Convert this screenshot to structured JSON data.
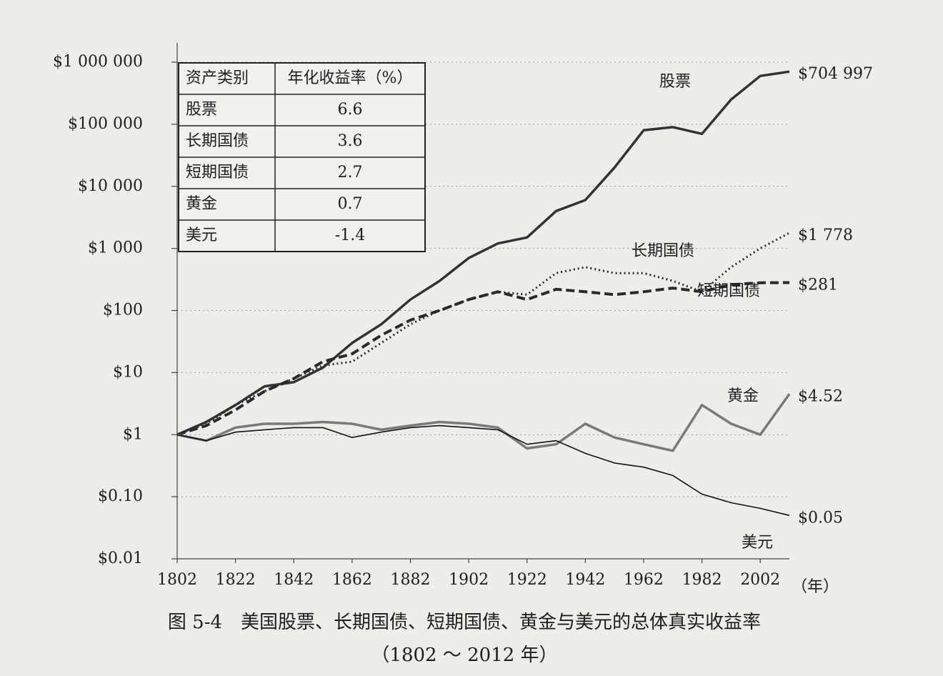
{
  "chart_data": {
    "type": "line",
    "title": "图 5-4　美国股票、长期国债、短期国债、黄金与美元的总体真实收益率",
    "subtitle": "（1802 ～ 2012 年）",
    "x_label": "（年）",
    "log_y": true,
    "grid": true,
    "xlim": [
      1802,
      2012
    ],
    "xticks": [
      1802,
      1822,
      1842,
      1862,
      1882,
      1902,
      1922,
      1942,
      1962,
      1982,
      2002
    ],
    "ylim": [
      0.01,
      1000000
    ],
    "yticks": [
      {
        "value": 0.01,
        "label": "$0.01"
      },
      {
        "value": 0.1,
        "label": "$0.10"
      },
      {
        "value": 1,
        "label": "$1"
      },
      {
        "value": 10,
        "label": "$10"
      },
      {
        "value": 100,
        "label": "$100"
      },
      {
        "value": 1000,
        "label": "$1 000"
      },
      {
        "value": 10000,
        "label": "$10 000"
      },
      {
        "value": 100000,
        "label": "$100 000"
      },
      {
        "value": 1000000,
        "label": "$1 000 000"
      }
    ],
    "x": [
      1802,
      1812,
      1822,
      1832,
      1842,
      1852,
      1862,
      1872,
      1882,
      1892,
      1902,
      1912,
      1922,
      1932,
      1942,
      1952,
      1962,
      1972,
      1982,
      1992,
      2002,
      2012
    ],
    "series": [
      {
        "name": "股票",
        "color": "#333333",
        "dash": "solid",
        "values": [
          1,
          1.6,
          3,
          6,
          7,
          12,
          30,
          60,
          150,
          300,
          700,
          1200,
          1500,
          4000,
          6000,
          20000,
          80000,
          90000,
          70000,
          250000,
          600000,
          704997
        ],
        "value_labels": [
          null,
          null,
          null,
          null,
          null,
          null,
          null,
          null,
          null,
          null,
          null,
          null,
          null,
          null,
          null,
          null,
          null,
          null,
          null,
          null,
          null,
          "$704 997"
        ]
      },
      {
        "name": "长期国债",
        "color": "#2a2a2a",
        "dash": "dotted",
        "values": [
          1,
          1.5,
          3,
          5,
          8,
          13,
          15,
          30,
          60,
          100,
          150,
          200,
          180,
          400,
          500,
          400,
          400,
          300,
          200,
          500,
          1000,
          1778
        ],
        "value_labels": [
          null,
          null,
          null,
          null,
          null,
          null,
          null,
          null,
          null,
          null,
          null,
          null,
          null,
          null,
          null,
          null,
          null,
          null,
          null,
          null,
          null,
          "$1 778"
        ]
      },
      {
        "name": "短期国债",
        "color": "#2a2a2a",
        "dash": "dashed",
        "values": [
          1,
          1.4,
          2.5,
          5,
          8,
          15,
          20,
          40,
          70,
          100,
          150,
          200,
          150,
          220,
          200,
          180,
          200,
          230,
          200,
          260,
          280,
          281
        ],
        "value_labels": [
          null,
          null,
          null,
          null,
          null,
          null,
          null,
          null,
          null,
          null,
          null,
          null,
          null,
          null,
          null,
          null,
          null,
          null,
          null,
          null,
          null,
          "$281"
        ]
      },
      {
        "name": "黄金",
        "color": "#7a7a7a",
        "dash": "solid",
        "values": [
          1,
          0.8,
          1.3,
          1.5,
          1.5,
          1.6,
          1.5,
          1.2,
          1.4,
          1.6,
          1.5,
          1.3,
          0.6,
          0.7,
          1.5,
          0.9,
          0.7,
          0.55,
          3,
          1.5,
          1.0,
          4.52
        ],
        "value_labels": [
          null,
          null,
          null,
          null,
          null,
          null,
          null,
          null,
          null,
          null,
          null,
          null,
          null,
          null,
          null,
          null,
          null,
          null,
          null,
          null,
          null,
          "$4.52"
        ]
      },
      {
        "name": "美元",
        "color": "#111111",
        "dash": "thin",
        "values": [
          1,
          0.8,
          1.1,
          1.2,
          1.3,
          1.3,
          0.9,
          1.1,
          1.3,
          1.4,
          1.3,
          1.2,
          0.7,
          0.8,
          0.5,
          0.35,
          0.3,
          0.22,
          0.11,
          0.08,
          0.065,
          0.05
        ],
        "value_labels": [
          null,
          null,
          null,
          null,
          null,
          null,
          null,
          null,
          null,
          null,
          null,
          null,
          null,
          null,
          null,
          null,
          null,
          null,
          null,
          null,
          null,
          "$0.05"
        ]
      }
    ]
  },
  "table": {
    "header": [
      "资产类别",
      "年化收益率（%）"
    ],
    "rows": [
      [
        "股票",
        6.6
      ],
      [
        "长期国债",
        3.6
      ],
      [
        "短期国债",
        2.7
      ],
      [
        "黄金",
        0.7
      ],
      [
        "美元",
        -1.4
      ]
    ]
  }
}
